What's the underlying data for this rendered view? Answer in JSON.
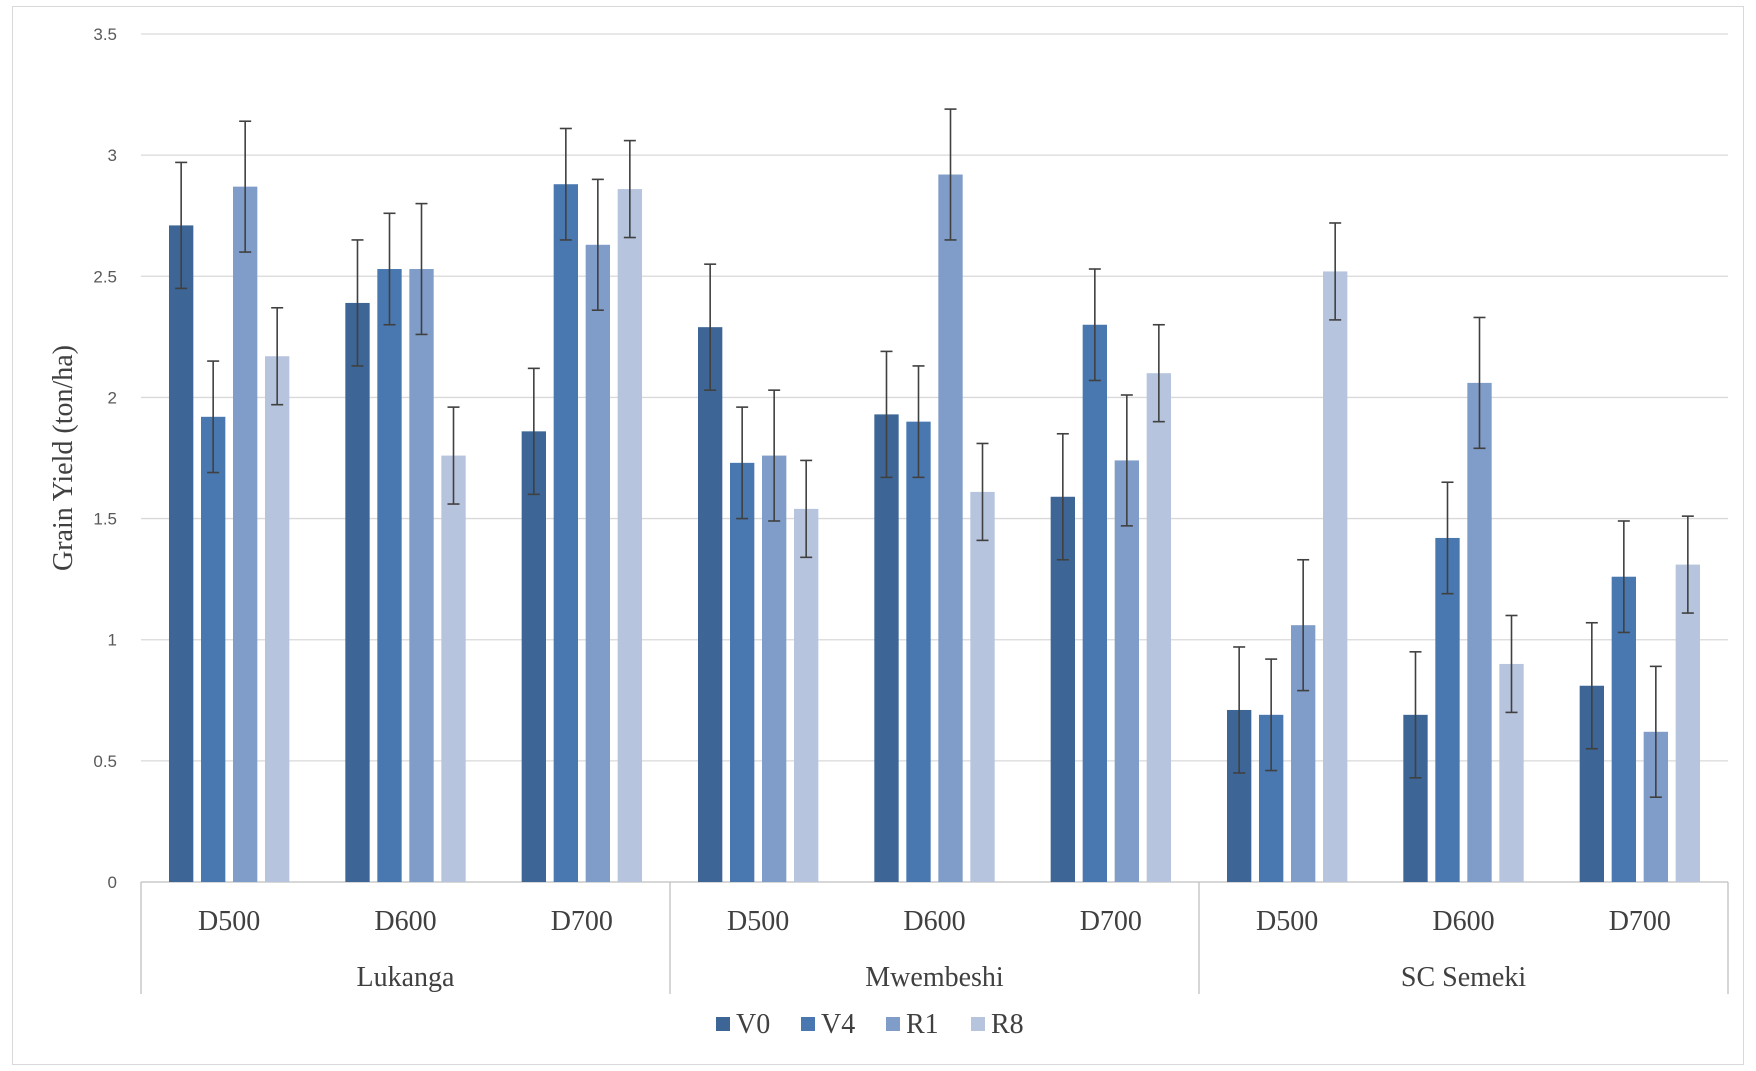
{
  "chart_data": {
    "type": "bar",
    "ylabel": "Grain Yield (ton/ha)",
    "ylim": [
      0,
      3.5
    ],
    "yticks": [
      "0",
      "0.5",
      "1",
      "1.5",
      "2",
      "2.5",
      "3",
      "3.5"
    ],
    "grid": true,
    "legend_position": "bottom",
    "groups": [
      {
        "name": "Lukanga",
        "categories": [
          "D500",
          "D600",
          "D700"
        ]
      },
      {
        "name": "Mwembeshi",
        "categories": [
          "D500",
          "D600",
          "D700"
        ]
      },
      {
        "name": "SC Semeki",
        "categories": [
          "D500",
          "D600",
          "D700"
        ]
      }
    ],
    "series": [
      {
        "name": "V0",
        "color": "#3d6595",
        "values": [
          2.71,
          2.39,
          1.86,
          2.29,
          1.93,
          1.59,
          0.71,
          0.69,
          0.81
        ],
        "errors": [
          0.26,
          0.26,
          0.26,
          0.26,
          0.26,
          0.26,
          0.26,
          0.26,
          0.26
        ]
      },
      {
        "name": "V4",
        "color": "#4978b0",
        "values": [
          1.92,
          2.53,
          2.88,
          1.73,
          1.9,
          2.3,
          0.69,
          1.42,
          1.26
        ],
        "errors": [
          0.23,
          0.23,
          0.23,
          0.23,
          0.23,
          0.23,
          0.23,
          0.23,
          0.23
        ]
      },
      {
        "name": "R1",
        "color": "#7f9dc8",
        "values": [
          2.87,
          2.53,
          2.63,
          1.76,
          2.92,
          1.74,
          1.06,
          2.06,
          0.62
        ],
        "errors": [
          0.27,
          0.27,
          0.27,
          0.27,
          0.27,
          0.27,
          0.27,
          0.27,
          0.27
        ]
      },
      {
        "name": "R8",
        "color": "#b6c4de",
        "values": [
          2.17,
          1.76,
          2.86,
          1.54,
          1.61,
          2.1,
          2.52,
          0.9,
          1.31
        ],
        "errors": [
          0.2,
          0.2,
          0.2,
          0.2,
          0.2,
          0.2,
          0.2,
          0.2,
          0.2
        ]
      }
    ]
  }
}
